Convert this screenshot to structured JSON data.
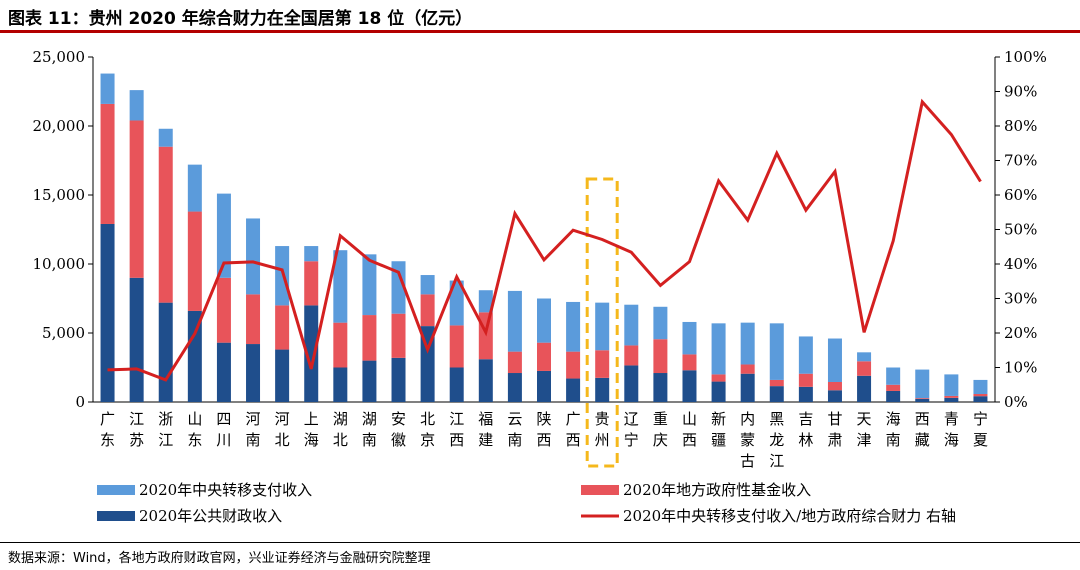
{
  "title": "图表 11：贵州 2020 年综合财力在全国居第 18 位（亿元）",
  "source": "数据来源：Wind，各地方政府财政官网，兴业证券经济与金融研究院整理",
  "colors": {
    "transfer": "#5b9bdb",
    "fund": "#e8545a",
    "public": "#1f4e8c",
    "ratio": "#d42020",
    "highlight": "#f5b81c",
    "rule": "#b30000"
  },
  "chart_data": {
    "type": "bar",
    "stacked": true,
    "categories": [
      [
        "广",
        "东"
      ],
      [
        "江",
        "苏"
      ],
      [
        "浙",
        "江"
      ],
      [
        "山",
        "东"
      ],
      [
        "四",
        "川"
      ],
      [
        "河",
        "南"
      ],
      [
        "河",
        "北"
      ],
      [
        "上",
        "海"
      ],
      [
        "湖",
        "北"
      ],
      [
        "湖",
        "南"
      ],
      [
        "安",
        "徽"
      ],
      [
        "北",
        "京"
      ],
      [
        "江",
        "西"
      ],
      [
        "福",
        "建"
      ],
      [
        "云",
        "南"
      ],
      [
        "陕",
        "西"
      ],
      [
        "广",
        "西"
      ],
      [
        "贵",
        "州"
      ],
      [
        "辽",
        "宁"
      ],
      [
        "重",
        "庆"
      ],
      [
        "山",
        "西"
      ],
      [
        "新",
        "疆"
      ],
      [
        "内",
        "蒙",
        "古"
      ],
      [
        "黑",
        "龙",
        "江"
      ],
      [
        "吉",
        "林"
      ],
      [
        "甘",
        "肃"
      ],
      [
        "天",
        "津"
      ],
      [
        "海",
        "南"
      ],
      [
        "西",
        "藏"
      ],
      [
        "青",
        "海"
      ],
      [
        "宁",
        "夏"
      ]
    ],
    "series": [
      {
        "name": "2020年公共财政收入",
        "axis": "left",
        "values": [
          12900,
          9000,
          7200,
          6600,
          4300,
          4200,
          3800,
          7000,
          2500,
          3000,
          3200,
          5500,
          2500,
          3100,
          2100,
          2250,
          1700,
          1750,
          2650,
          2100,
          2300,
          1480,
          2050,
          1150,
          1100,
          850,
          1900,
          800,
          220,
          300,
          420
        ]
      },
      {
        "name": "2020年地方政府性基金收入",
        "axis": "left",
        "values": [
          8700,
          11400,
          11300,
          7200,
          4700,
          3600,
          3200,
          3200,
          3250,
          3300,
          3200,
          2300,
          3050,
          3400,
          1550,
          2050,
          1950,
          2000,
          1450,
          2450,
          1150,
          520,
          670,
          450,
          950,
          600,
          1050,
          450,
          60,
          140,
          160
        ]
      },
      {
        "name": "2020年中央转移支付收入",
        "axis": "left",
        "values": [
          2200,
          2200,
          1300,
          3400,
          6100,
          5500,
          4300,
          1100,
          5250,
          4400,
          3800,
          1400,
          3250,
          1600,
          4400,
          3200,
          3600,
          3450,
          2950,
          2350,
          2350,
          3700,
          3030,
          4100,
          2700,
          3150,
          650,
          1250,
          2070,
          1560,
          1020
        ]
      },
      {
        "name": "2020年中央转移支付收入/地方政府综合财力 右轴",
        "axis": "right",
        "type": "line",
        "values": [
          9.3,
          9.6,
          6.4,
          19.8,
          40.3,
          40.6,
          38.3,
          9.6,
          48.2,
          41.1,
          37.6,
          15.2,
          36.3,
          20.2,
          54.6,
          41.2,
          49.8,
          47.1,
          43.4,
          33.8,
          40.7,
          64.1,
          52.7,
          72.1,
          55.6,
          66.8,
          20.2,
          46.7,
          87.0,
          77.5,
          63.9
        ]
      }
    ],
    "yleft": {
      "min": 0,
      "max": 25000,
      "ticks": [
        "0",
        "5,000",
        "10,000",
        "15,000",
        "20,000",
        "25,000"
      ]
    },
    "yright": {
      "min": 0,
      "max": 100,
      "ticks": [
        "0%",
        "10%",
        "20%",
        "30%",
        "40%",
        "50%",
        "60%",
        "70%",
        "80%",
        "90%",
        "100%"
      ]
    },
    "highlight_category": "贵州",
    "legend": [
      {
        "label": "2020年中央转移支付收入",
        "kind": "box",
        "series": 2
      },
      {
        "label": "2020年地方政府性基金收入",
        "kind": "box",
        "series": 1
      },
      {
        "label": "2020年公共财政收入",
        "kind": "box",
        "series": 0
      },
      {
        "label": "2020年中央转移支付收入/地方政府综合财力 右轴",
        "kind": "line",
        "series": 3
      }
    ]
  }
}
